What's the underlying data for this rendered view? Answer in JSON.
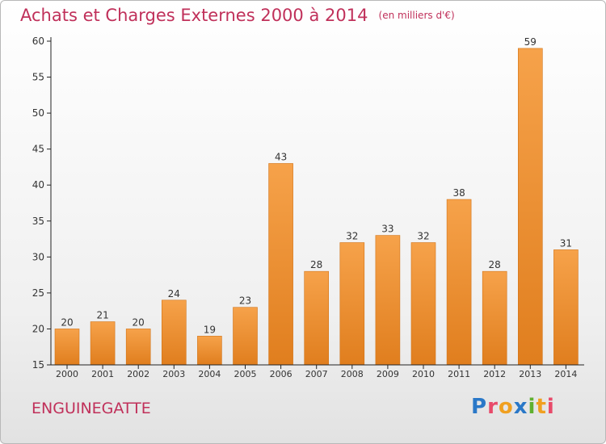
{
  "title": "Achats et Charges Externes 2000 à 2014",
  "unit": "(en milliers d'€)",
  "commune": "ENGUINEGATTE",
  "brand": {
    "text": "Proxiti",
    "letter_colors": [
      "#2a78c8",
      "#e84a6a",
      "#f0a020",
      "#2a78c8",
      "#60b030",
      "#f0a020",
      "#e84a6a"
    ]
  },
  "colors": {
    "title": "#c0305a",
    "bar_light": "#f6a24a",
    "bar_dark": "#e07e1e",
    "axis": "#222222"
  },
  "chart_data": {
    "type": "bar",
    "categories": [
      "2000",
      "2001",
      "2002",
      "2003",
      "2004",
      "2005",
      "2006",
      "2007",
      "2008",
      "2009",
      "2010",
      "2011",
      "2012",
      "2013",
      "2014"
    ],
    "values": [
      20,
      21,
      20,
      24,
      19,
      23,
      43,
      28,
      32,
      33,
      32,
      38,
      28,
      59,
      31
    ],
    "ylim": [
      15,
      60
    ],
    "yticks": [
      15,
      20,
      25,
      30,
      35,
      40,
      45,
      50,
      55,
      60
    ],
    "grid": false,
    "legend": "none"
  }
}
